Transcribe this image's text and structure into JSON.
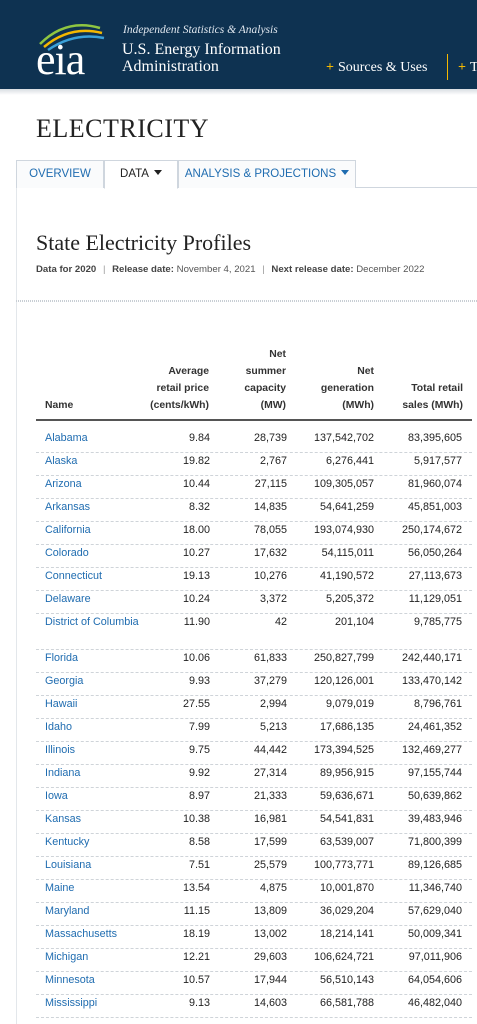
{
  "header": {
    "logo_text": "eia",
    "tagline": "Independent Statistics & Analysis",
    "agency_line1": "U.S. Energy Information",
    "agency_line2": "Administration",
    "nav_sources": "Sources & Uses",
    "nav_plus": "+",
    "nav_more": "T",
    "colors": {
      "header_bg": "#0e3251",
      "accent": "#f5b800",
      "link": "#1f6cb0"
    }
  },
  "section_title": "ELECTRICITY",
  "tabs": [
    {
      "label": "OVERVIEW",
      "active": false
    },
    {
      "label": "DATA",
      "active": true
    },
    {
      "label": "ANALYSIS & PROJECTIONS",
      "active": false
    }
  ],
  "page_title": "State Electricity Profiles",
  "meta": {
    "data_for": "Data for 2020",
    "release_label": "Release date:",
    "release_date": "November 4, 2021",
    "next_label": "Next release date:",
    "next_date": "December 2022",
    "separator": "|"
  },
  "table": {
    "columns": {
      "name": "Name",
      "price": [
        "Average",
        "retail price",
        "(cents/kWh)"
      ],
      "capacity": [
        "Net",
        "summer",
        "capacity",
        "(MW)"
      ],
      "generation": [
        "Net",
        "generation",
        "(MWh)"
      ],
      "sales": [
        "Total retail",
        "sales (MWh)"
      ]
    },
    "rows": [
      {
        "name": "Alabama",
        "price": "9.84",
        "capacity": "28,739",
        "generation": "137,542,702",
        "sales": "83,395,605"
      },
      {
        "name": "Alaska",
        "price": "19.82",
        "capacity": "2,767",
        "generation": "6,276,441",
        "sales": "5,917,577"
      },
      {
        "name": "Arizona",
        "price": "10.44",
        "capacity": "27,115",
        "generation": "109,305,057",
        "sales": "81,960,074"
      },
      {
        "name": "Arkansas",
        "price": "8.32",
        "capacity": "14,835",
        "generation": "54,641,259",
        "sales": "45,851,003"
      },
      {
        "name": "California",
        "price": "18.00",
        "capacity": "78,055",
        "generation": "193,074,930",
        "sales": "250,174,672"
      },
      {
        "name": "Colorado",
        "price": "10.27",
        "capacity": "17,632",
        "generation": "54,115,011",
        "sales": "56,050,264"
      },
      {
        "name": "Connecticut",
        "price": "19.13",
        "capacity": "10,276",
        "generation": "41,190,572",
        "sales": "27,113,673"
      },
      {
        "name": "Delaware",
        "price": "10.24",
        "capacity": "3,372",
        "generation": "5,205,372",
        "sales": "11,129,051"
      },
      {
        "name": "District of Columbia",
        "price": "11.90",
        "capacity": "42",
        "generation": "201,104",
        "sales": "9,785,775"
      },
      {
        "name": "Florida",
        "price": "10.06",
        "capacity": "61,833",
        "generation": "250,827,799",
        "sales": "242,440,171"
      },
      {
        "name": "Georgia",
        "price": "9.93",
        "capacity": "37,279",
        "generation": "120,126,001",
        "sales": "133,470,142"
      },
      {
        "name": "Hawaii",
        "price": "27.55",
        "capacity": "2,994",
        "generation": "9,079,019",
        "sales": "8,796,761"
      },
      {
        "name": "Idaho",
        "price": "7.99",
        "capacity": "5,213",
        "generation": "17,686,135",
        "sales": "24,461,352"
      },
      {
        "name": "Illinois",
        "price": "9.75",
        "capacity": "44,442",
        "generation": "173,394,525",
        "sales": "132,469,277"
      },
      {
        "name": "Indiana",
        "price": "9.92",
        "capacity": "27,314",
        "generation": "89,956,915",
        "sales": "97,155,744"
      },
      {
        "name": "Iowa",
        "price": "8.97",
        "capacity": "21,333",
        "generation": "59,636,671",
        "sales": "50,639,862"
      },
      {
        "name": "Kansas",
        "price": "10.38",
        "capacity": "16,981",
        "generation": "54,541,831",
        "sales": "39,483,946"
      },
      {
        "name": "Kentucky",
        "price": "8.58",
        "capacity": "17,599",
        "generation": "63,539,007",
        "sales": "71,800,399"
      },
      {
        "name": "Louisiana",
        "price": "7.51",
        "capacity": "25,579",
        "generation": "100,773,771",
        "sales": "89,126,685"
      },
      {
        "name": "Maine",
        "price": "13.54",
        "capacity": "4,875",
        "generation": "10,001,870",
        "sales": "11,346,740"
      },
      {
        "name": "Maryland",
        "price": "11.15",
        "capacity": "13,809",
        "generation": "36,029,204",
        "sales": "57,629,040"
      },
      {
        "name": "Massachusetts",
        "price": "18.19",
        "capacity": "13,002",
        "generation": "18,214,141",
        "sales": "50,009,341"
      },
      {
        "name": "Michigan",
        "price": "12.21",
        "capacity": "29,603",
        "generation": "106,624,721",
        "sales": "97,011,906"
      },
      {
        "name": "Minnesota",
        "price": "10.57",
        "capacity": "17,944",
        "generation": "56,510,143",
        "sales": "64,054,606"
      },
      {
        "name": "Mississippi",
        "price": "9.13",
        "capacity": "14,603",
        "generation": "66,581,788",
        "sales": "46,482,040"
      }
    ]
  }
}
